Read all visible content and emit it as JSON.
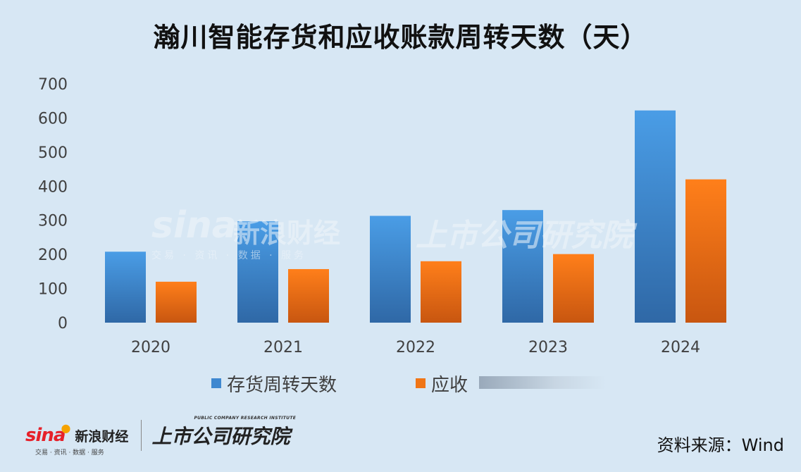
{
  "title": "瀚川智能存货和应收账款周转天数（天）",
  "chart_data": {
    "type": "bar",
    "categories": [
      "2020",
      "2021",
      "2022",
      "2023",
      "2024"
    ],
    "series": [
      {
        "name": "存货周转天数",
        "values": [
          208,
          297,
          313,
          330,
          622
        ],
        "color_top": "#4a9de6",
        "color_bottom": "#2f68a6"
      },
      {
        "name": "应收账款周转天数",
        "values": [
          120,
          157,
          180,
          201,
          420
        ],
        "color_top": "#ff7f1a",
        "color_bottom": "#c85610"
      }
    ],
    "yticks": [
      "0",
      "100",
      "200",
      "300",
      "400",
      "500",
      "600",
      "700"
    ],
    "ylim": [
      0,
      700
    ],
    "grid": false,
    "legend_position": "bottom"
  },
  "legend": {
    "inventory_label": "存货周转天数",
    "receivable_label": "应收"
  },
  "footer": {
    "sina_word": "sina",
    "sina_cn": "新浪财经",
    "sina_sub": "交易 · 资讯 · 数据 · 服务",
    "institute_cn": "上市公司研究院",
    "institute_en": "PUBLIC COMPANY RESEARCH INSTITUTE",
    "source": "资料来源：Wind"
  },
  "watermark": {
    "sina_word": "sina",
    "sina_cn": "新浪财经",
    "sub": "交易 · 资讯 · 数据 · 服务",
    "institute_cn": "上市公司研究院"
  }
}
